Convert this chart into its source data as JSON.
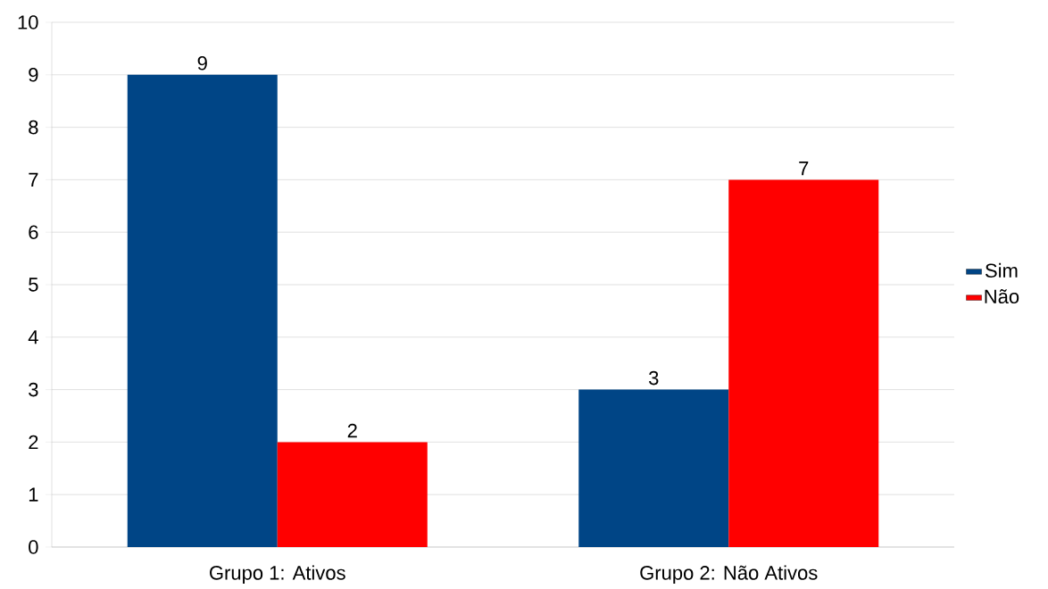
{
  "chart_data": {
    "type": "bar",
    "categories": [
      "Grupo 1: Ativos",
      "Grupo 2: Não Ativos"
    ],
    "series": [
      {
        "name": "Sim",
        "color": "#004586",
        "values": [
          9,
          3
        ]
      },
      {
        "name": "Não",
        "color": "#ff0000",
        "values": [
          2,
          7
        ]
      }
    ],
    "ylim": [
      0,
      10
    ],
    "yticks": [
      0,
      1,
      2,
      3,
      4,
      5,
      6,
      7,
      8,
      9,
      10
    ],
    "grid": "y",
    "legend": "right",
    "data_labels": true
  }
}
